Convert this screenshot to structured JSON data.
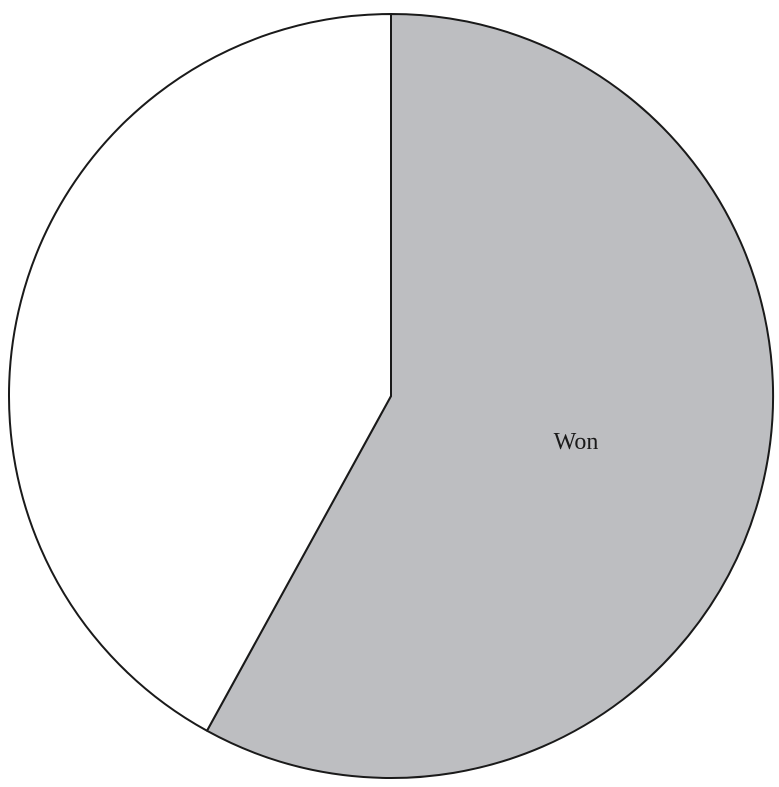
{
  "chart_data": {
    "type": "pie",
    "title": "",
    "start_angle": "12 o'clock",
    "direction": "clockwise",
    "slices": [
      {
        "label": "Won",
        "value": 58,
        "color": "#bdbec1",
        "label_shown": true
      },
      {
        "label": "",
        "value": 42,
        "color": "#ffffff",
        "label_shown": false
      }
    ],
    "stroke_color": "#1a1a1a"
  }
}
